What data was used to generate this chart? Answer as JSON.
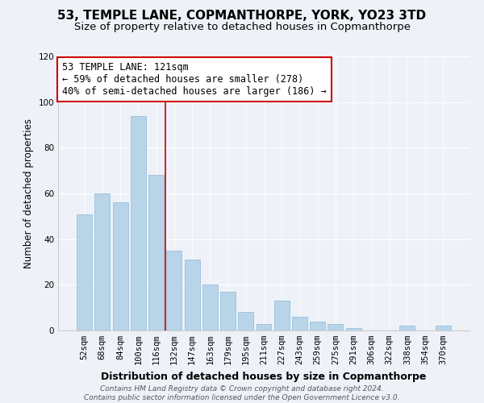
{
  "title": "53, TEMPLE LANE, COPMANTHORPE, YORK, YO23 3TD",
  "subtitle": "Size of property relative to detached houses in Copmanthorpe",
  "xlabel": "Distribution of detached houses by size in Copmanthorpe",
  "ylabel": "Number of detached properties",
  "bar_labels": [
    "52sqm",
    "68sqm",
    "84sqm",
    "100sqm",
    "116sqm",
    "132sqm",
    "147sqm",
    "163sqm",
    "179sqm",
    "195sqm",
    "211sqm",
    "227sqm",
    "243sqm",
    "259sqm",
    "275sqm",
    "291sqm",
    "306sqm",
    "322sqm",
    "338sqm",
    "354sqm",
    "370sqm"
  ],
  "bar_values": [
    51,
    60,
    56,
    94,
    68,
    35,
    31,
    20,
    17,
    8,
    3,
    13,
    6,
    4,
    3,
    1,
    0,
    0,
    2,
    0,
    2
  ],
  "bar_color": "#b8d4e8",
  "vline_color": "#cc0000",
  "vline_pos": 4.5,
  "annotation_text_line1": "53 TEMPLE LANE: 121sqm",
  "annotation_text_line2": "← 59% of detached houses are smaller (278)",
  "annotation_text_line3": "40% of semi-detached houses are larger (186) →",
  "annotation_box_facecolor": "#ffffff",
  "annotation_box_edgecolor": "#cc0000",
  "ylim": [
    0,
    120
  ],
  "yticks": [
    0,
    20,
    40,
    60,
    80,
    100,
    120
  ],
  "background_color": "#eef2f8",
  "grid_color": "#ffffff",
  "footer_line1": "Contains HM Land Registry data © Crown copyright and database right 2024.",
  "footer_line2": "Contains public sector information licensed under the Open Government Licence v3.0.",
  "title_fontsize": 11,
  "subtitle_fontsize": 9.5,
  "xlabel_fontsize": 9,
  "ylabel_fontsize": 8.5,
  "tick_fontsize": 7.5,
  "footer_fontsize": 6.5,
  "annotation_fontsize": 8.5
}
